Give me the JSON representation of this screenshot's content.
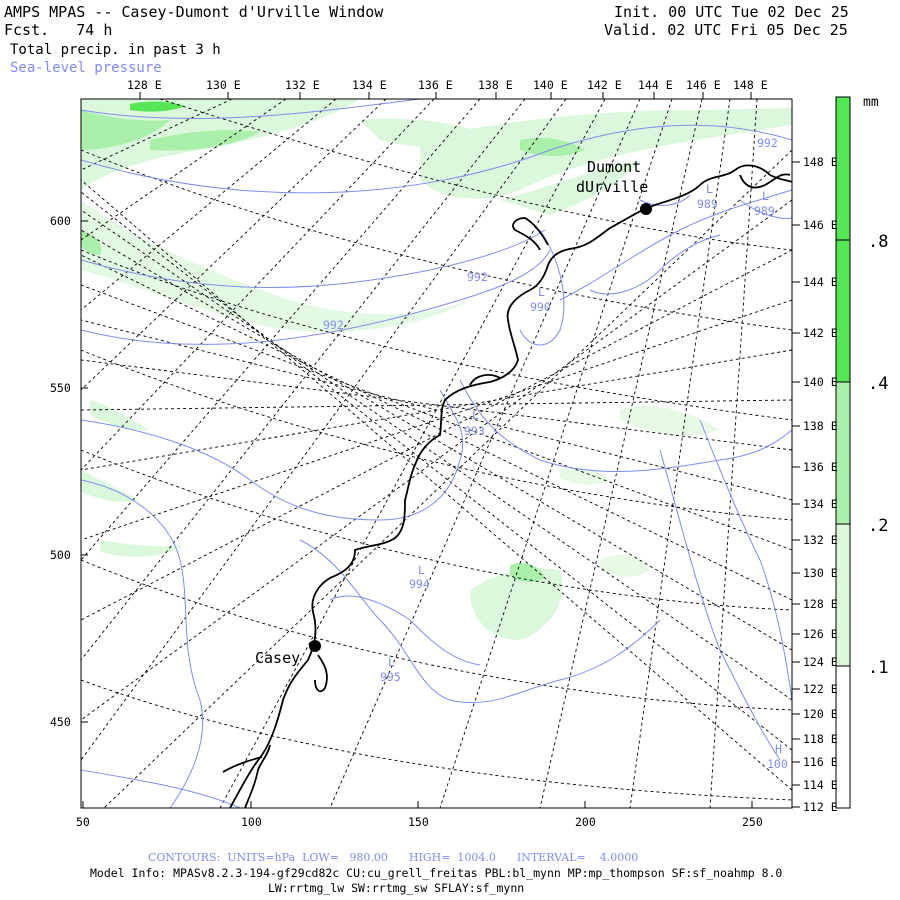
{
  "header": {
    "title": "AMPS MPAS -- Casey-Dumont d'Urville Window",
    "forecast": "Fcst.   74 h",
    "field": "Total precip. in past 3 h",
    "contour_field": "Sea-level pressure",
    "init": "Init. 00 UTC Tue 02 Dec 25",
    "valid": "Valid. 02 UTC Fri 05 Dec 25"
  },
  "top_axis": [
    "128 E",
    "130 E",
    "132 E",
    "134 E",
    "136 E",
    "138 E",
    "140 E",
    "142 E",
    "144 E",
    "146 E",
    "148 E"
  ],
  "right_axis": [
    "148 E",
    "146 E",
    "144 E",
    "142 E",
    "140 E",
    "138 E",
    "136 E",
    "134 E",
    "132 E",
    "130 E",
    "128 E",
    "126 E",
    "124 E",
    "122 E",
    "120 E",
    "118 E",
    "116 E",
    "114 E",
    "112 E"
  ],
  "left_axis": [
    "600",
    "550",
    "500",
    "450"
  ],
  "bottom_axis": [
    "50",
    "100",
    "150",
    "200",
    "250"
  ],
  "colorbar": {
    "unit": "mm",
    "labels": [
      ".8",
      ".4",
      ".2",
      ".1"
    ],
    "colors": [
      "#55e555",
      "#aaf0aa",
      "#dcf8dc",
      "#ffffff"
    ]
  },
  "stations": [
    {
      "name": "Dumont\ndUrville",
      "label1": "Dumont",
      "label2": "dUrville"
    },
    {
      "name": "Casey",
      "label1": "Casey"
    }
  ],
  "contour_labels": [
    "992",
    "992",
    "992",
    "989",
    "989",
    "990",
    "993",
    "994",
    "995",
    "100"
  ],
  "pressure_centers": [
    "L",
    "L",
    "L",
    "L",
    "L",
    "L",
    "L",
    "H"
  ],
  "footer": {
    "contours": "CONTOURS:  UNITS=hPa  LOW=   980.00      HIGH=  1004.0      INTERVAL=    4.0000",
    "model_info": "Model Info: MPASv8.2.3-194-gf29cd82c CU:cu_grell_freitas PBL:bl_mynn MP:mp_thompson SF:sf_noahmp 8.0",
    "model_info2": "LW:rrtmg_lw SW:rrtmg_sw SFLAY:sf_mynn"
  },
  "colors": {
    "contour": "#7f8cf0",
    "precip_light": "#dcf8dc",
    "precip_mid": "#aaf0aa",
    "precip_heavy": "#55e555"
  }
}
